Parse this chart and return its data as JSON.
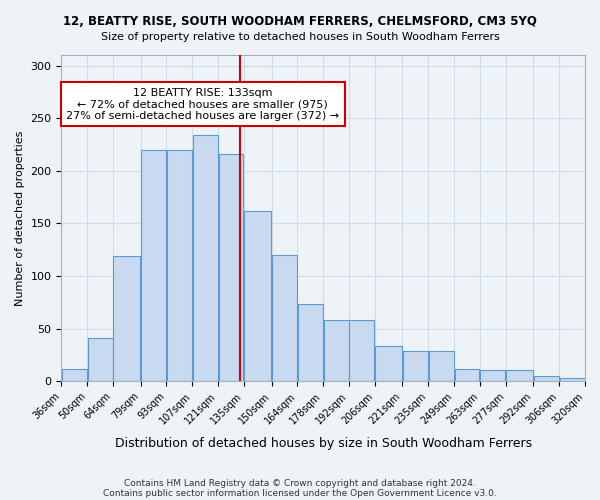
{
  "title": "12, BEATTY RISE, SOUTH WOODHAM FERRERS, CHELMSFORD, CM3 5YQ",
  "subtitle": "Size of property relative to detached houses in South Woodham Ferrers",
  "xlabel": "Distribution of detached houses by size in South Woodham Ferrers",
  "ylabel": "Number of detached properties",
  "footnote1": "Contains HM Land Registry data © Crown copyright and database right 2024.",
  "footnote2": "Contains public sector information licensed under the Open Government Licence v3.0.",
  "annotation_line1": "12 BEATTY RISE: 133sqm",
  "annotation_line2": "← 72% of detached houses are smaller (975)",
  "annotation_line3": "27% of semi-detached houses are larger (372) →",
  "property_size": 133,
  "bar_color": "#c9d9f0",
  "bar_edge_color": "#5b9bd5",
  "ref_line_color": "#cc0000",
  "annotation_box_color": "#cc0000",
  "grid_color": "#d0dde8",
  "bg_color": "#eef3f8",
  "bins": [
    36,
    50,
    64,
    79,
    93,
    107,
    121,
    135,
    150,
    164,
    178,
    192,
    206,
    221,
    235,
    249,
    263,
    277,
    292,
    306,
    320
  ],
  "bin_labels": [
    "36sqm",
    "50sqm",
    "64sqm",
    "79sqm",
    "93sqm",
    "107sqm",
    "121sqm",
    "135sqm",
    "150sqm",
    "164sqm",
    "178sqm",
    "192sqm",
    "206sqm",
    "221sqm",
    "235sqm",
    "249sqm",
    "263sqm",
    "277sqm",
    "292sqm",
    "306sqm",
    "320sqm"
  ],
  "heights": [
    12,
    41,
    119,
    220,
    220,
    234,
    216,
    162,
    120,
    73,
    58,
    58,
    33,
    29,
    29,
    12,
    11,
    11,
    5,
    3,
    3
  ],
  "ylim": [
    0,
    310
  ],
  "yticks": [
    0,
    50,
    100,
    150,
    200,
    250,
    300
  ]
}
